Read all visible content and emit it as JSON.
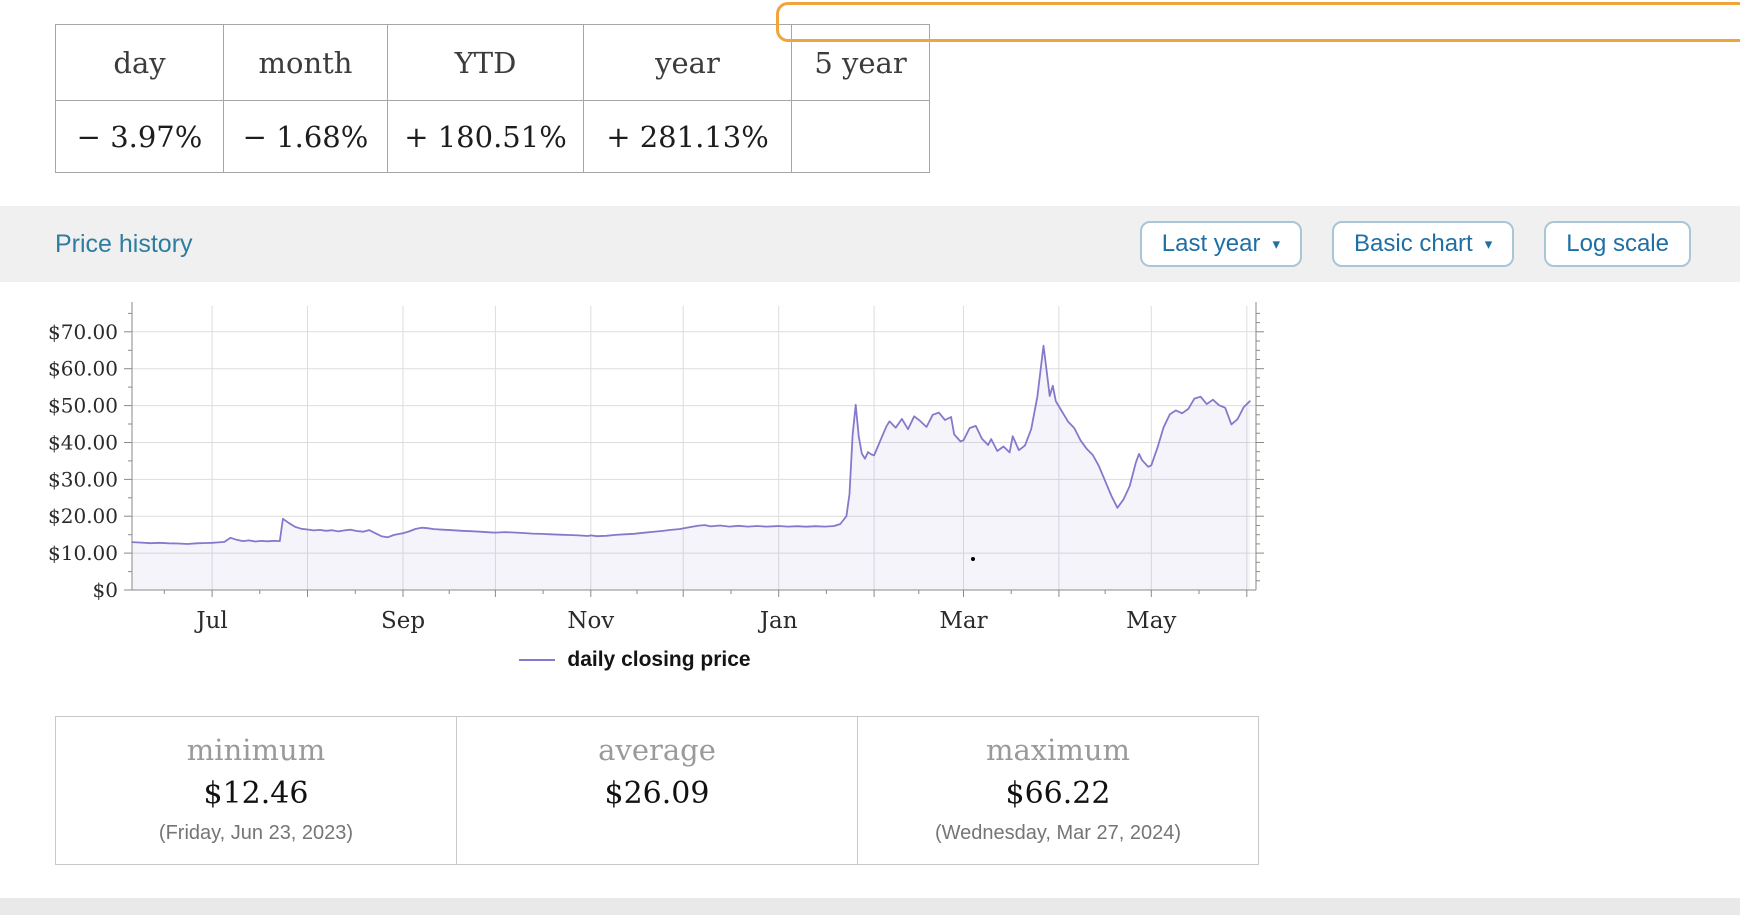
{
  "performance_table": {
    "columns": [
      "day",
      "month",
      "YTD",
      "year",
      "5 year"
    ],
    "values": [
      "− 3.97%",
      "− 1.68%",
      "+ 180.51%",
      "+ 281.13%",
      ""
    ]
  },
  "price_history": {
    "title": "Price history",
    "controls": {
      "range_dropdown": "Last year",
      "chart_type_dropdown": "Basic chart",
      "log_scale_button": "Log scale"
    }
  },
  "chart_data": {
    "type": "line",
    "title": "Price history — last year",
    "legend": "daily closing price",
    "line_color": "#8878cc",
    "ylim": [
      0,
      77
    ],
    "x_domain": [
      0,
      365
    ],
    "y_ticks": [
      [
        0,
        "$0"
      ],
      [
        10,
        "$10.00"
      ],
      [
        20,
        "$20.00"
      ],
      [
        30,
        "$30.00"
      ],
      [
        40,
        "$40.00"
      ],
      [
        50,
        "$50.00"
      ],
      [
        60,
        "$60.00"
      ],
      [
        70,
        "$70.00"
      ]
    ],
    "x_ticks": [
      [
        26,
        "Jul"
      ],
      [
        88,
        "Sep"
      ],
      [
        149,
        "Nov"
      ],
      [
        210,
        "Jan"
      ],
      [
        270,
        "Mar"
      ],
      [
        331,
        "May"
      ]
    ],
    "x_gridlines": [
      26,
      57,
      88,
      118,
      149,
      179,
      210,
      241,
      270,
      301,
      331,
      362
    ],
    "series": [
      {
        "name": "daily closing price",
        "points": [
          [
            0,
            13.0
          ],
          [
            3,
            12.85
          ],
          [
            6,
            12.7
          ],
          [
            9,
            12.8
          ],
          [
            12,
            12.65
          ],
          [
            15,
            12.6
          ],
          [
            18,
            12.46
          ],
          [
            21,
            12.65
          ],
          [
            24,
            12.75
          ],
          [
            26,
            12.8
          ],
          [
            28,
            12.9
          ],
          [
            30,
            13.05
          ],
          [
            32,
            14.15
          ],
          [
            34,
            13.6
          ],
          [
            36,
            13.25
          ],
          [
            38,
            13.45
          ],
          [
            40,
            13.15
          ],
          [
            42,
            13.3
          ],
          [
            44,
            13.2
          ],
          [
            46,
            13.35
          ],
          [
            48,
            13.25
          ],
          [
            49,
            19.3
          ],
          [
            51,
            18.1
          ],
          [
            53,
            17.1
          ],
          [
            55,
            16.6
          ],
          [
            57,
            16.4
          ],
          [
            59,
            16.15
          ],
          [
            61,
            16.3
          ],
          [
            63,
            16.05
          ],
          [
            65,
            16.2
          ],
          [
            67,
            15.9
          ],
          [
            69,
            16.15
          ],
          [
            71,
            16.35
          ],
          [
            73,
            16.0
          ],
          [
            75,
            15.8
          ],
          [
            77,
            16.25
          ],
          [
            79,
            15.4
          ],
          [
            81,
            14.6
          ],
          [
            83,
            14.3
          ],
          [
            85,
            14.9
          ],
          [
            87,
            15.25
          ],
          [
            88,
            15.4
          ],
          [
            90,
            15.9
          ],
          [
            92,
            16.55
          ],
          [
            94,
            16.9
          ],
          [
            96,
            16.75
          ],
          [
            98,
            16.5
          ],
          [
            101,
            16.35
          ],
          [
            104,
            16.2
          ],
          [
            107,
            16.05
          ],
          [
            110,
            15.95
          ],
          [
            113,
            15.8
          ],
          [
            116,
            15.65
          ],
          [
            118,
            15.55
          ],
          [
            121,
            15.7
          ],
          [
            124,
            15.6
          ],
          [
            127,
            15.45
          ],
          [
            130,
            15.3
          ],
          [
            133,
            15.2
          ],
          [
            136,
            15.1
          ],
          [
            139,
            15.0
          ],
          [
            142,
            14.9
          ],
          [
            145,
            14.8
          ],
          [
            148,
            14.65
          ],
          [
            149,
            14.8
          ],
          [
            151,
            14.6
          ],
          [
            154,
            14.7
          ],
          [
            157,
            14.95
          ],
          [
            160,
            15.1
          ],
          [
            163,
            15.25
          ],
          [
            166,
            15.5
          ],
          [
            169,
            15.75
          ],
          [
            172,
            16.0
          ],
          [
            175,
            16.3
          ],
          [
            178,
            16.55
          ],
          [
            179,
            16.7
          ],
          [
            181,
            17.0
          ],
          [
            184,
            17.45
          ],
          [
            186,
            17.6
          ],
          [
            188,
            17.25
          ],
          [
            191,
            17.5
          ],
          [
            194,
            17.2
          ],
          [
            197,
            17.4
          ],
          [
            200,
            17.2
          ],
          [
            203,
            17.35
          ],
          [
            206,
            17.2
          ],
          [
            209,
            17.3
          ],
          [
            210,
            17.35
          ],
          [
            213,
            17.2
          ],
          [
            216,
            17.3
          ],
          [
            219,
            17.15
          ],
          [
            222,
            17.3
          ],
          [
            225,
            17.2
          ],
          [
            228,
            17.35
          ],
          [
            230,
            17.9
          ],
          [
            232,
            20.0
          ],
          [
            233,
            26.0
          ],
          [
            234,
            42.0
          ],
          [
            235,
            50.2
          ],
          [
            236,
            41.5
          ],
          [
            237,
            37.0
          ],
          [
            238,
            35.6
          ],
          [
            239,
            37.4
          ],
          [
            240,
            36.8
          ],
          [
            241,
            36.5
          ],
          [
            243,
            40.5
          ],
          [
            245,
            44.4
          ],
          [
            246,
            45.7
          ],
          [
            248,
            44.0
          ],
          [
            250,
            46.4
          ],
          [
            252,
            43.6
          ],
          [
            254,
            47.1
          ],
          [
            256,
            45.8
          ],
          [
            258,
            44.2
          ],
          [
            260,
            47.5
          ],
          [
            262,
            48.1
          ],
          [
            264,
            46.1
          ],
          [
            266,
            46.9
          ],
          [
            267,
            42.2
          ],
          [
            269,
            40.3
          ],
          [
            270,
            40.6
          ],
          [
            272,
            43.9
          ],
          [
            274,
            44.5
          ],
          [
            276,
            41.0
          ],
          [
            278,
            39.3
          ],
          [
            279,
            40.9
          ],
          [
            281,
            37.7
          ],
          [
            283,
            38.9
          ],
          [
            285,
            37.3
          ],
          [
            286,
            41.7
          ],
          [
            288,
            37.9
          ],
          [
            290,
            39.2
          ],
          [
            292,
            43.6
          ],
          [
            294,
            52.5
          ],
          [
            296,
            66.22
          ],
          [
            297,
            59.5
          ],
          [
            298,
            52.6
          ],
          [
            299,
            55.4
          ],
          [
            300,
            51.2
          ],
          [
            302,
            48.4
          ],
          [
            304,
            45.6
          ],
          [
            306,
            43.9
          ],
          [
            308,
            40.6
          ],
          [
            310,
            38.3
          ],
          [
            312,
            36.6
          ],
          [
            314,
            33.6
          ],
          [
            316,
            29.6
          ],
          [
            318,
            25.6
          ],
          [
            320,
            22.3
          ],
          [
            322,
            24.6
          ],
          [
            324,
            28.2
          ],
          [
            326,
            34.6
          ],
          [
            327,
            36.9
          ],
          [
            328,
            35.2
          ],
          [
            330,
            33.4
          ],
          [
            331,
            33.8
          ],
          [
            333,
            38.6
          ],
          [
            335,
            44.1
          ],
          [
            337,
            47.6
          ],
          [
            339,
            48.7
          ],
          [
            341,
            47.9
          ],
          [
            343,
            49.1
          ],
          [
            345,
            51.9
          ],
          [
            347,
            52.4
          ],
          [
            349,
            50.4
          ],
          [
            351,
            51.6
          ],
          [
            353,
            50.1
          ],
          [
            355,
            49.4
          ],
          [
            357,
            44.9
          ],
          [
            359,
            46.3
          ],
          [
            361,
            49.6
          ],
          [
            363,
            51.2
          ]
        ]
      }
    ]
  },
  "stats": {
    "columns": [
      {
        "label": "minimum",
        "value": "$12.46",
        "date": "(Friday, Jun 23, 2023)"
      },
      {
        "label": "average",
        "value": "$26.09",
        "date": ""
      },
      {
        "label": "maximum",
        "value": "$66.22",
        "date": "(Wednesday, Mar 27, 2024)"
      }
    ]
  },
  "colors": {
    "accent_teal": "#2e7da0",
    "button_blue": "#1e6fa5",
    "line_purple": "#8878cc",
    "orange_highlight": "#f0a43c"
  }
}
